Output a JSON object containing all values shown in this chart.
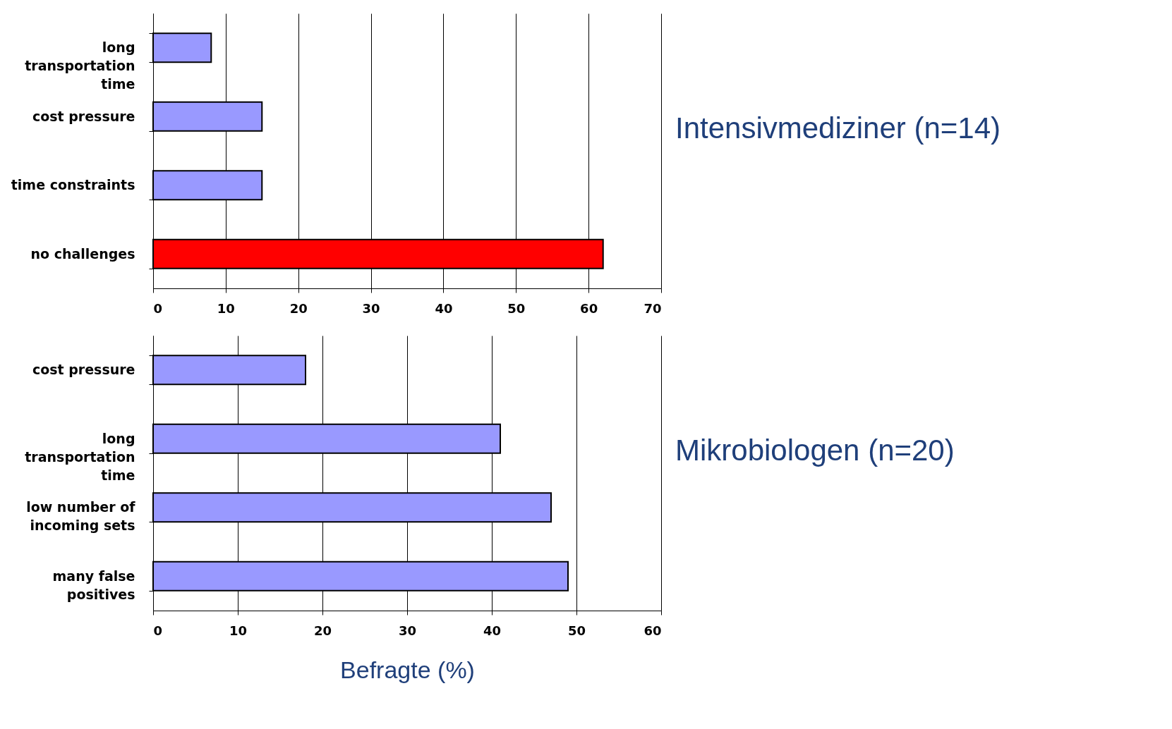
{
  "chart_data": [
    {
      "type": "bar",
      "orientation": "horizontal",
      "title": "Intensivmediziner (n=14)",
      "categories": [
        "long transportation time",
        "cost pressure",
        "time constraints",
        "no challenges"
      ],
      "values": [
        8,
        15,
        15,
        62
      ],
      "colors": [
        "#9999ff",
        "#9999ff",
        "#9999ff",
        "#ff0000"
      ],
      "xlim": [
        0,
        70
      ],
      "xticks": [
        0,
        10,
        20,
        30,
        40,
        50,
        60,
        70
      ],
      "grid": "x"
    },
    {
      "type": "bar",
      "orientation": "horizontal",
      "title": "Mikrobiologen (n=20)",
      "xlabel": "Befragte (%)",
      "categories": [
        "cost pressure",
        "long transportation time",
        "low number of incoming sets",
        "many false positives"
      ],
      "values": [
        18,
        41,
        47,
        49
      ],
      "colors": [
        "#9999ff",
        "#9999ff",
        "#9999ff",
        "#9999ff"
      ],
      "xlim": [
        0,
        60
      ],
      "xticks": [
        0,
        10,
        20,
        30,
        40,
        50,
        60
      ],
      "grid": "x"
    }
  ]
}
